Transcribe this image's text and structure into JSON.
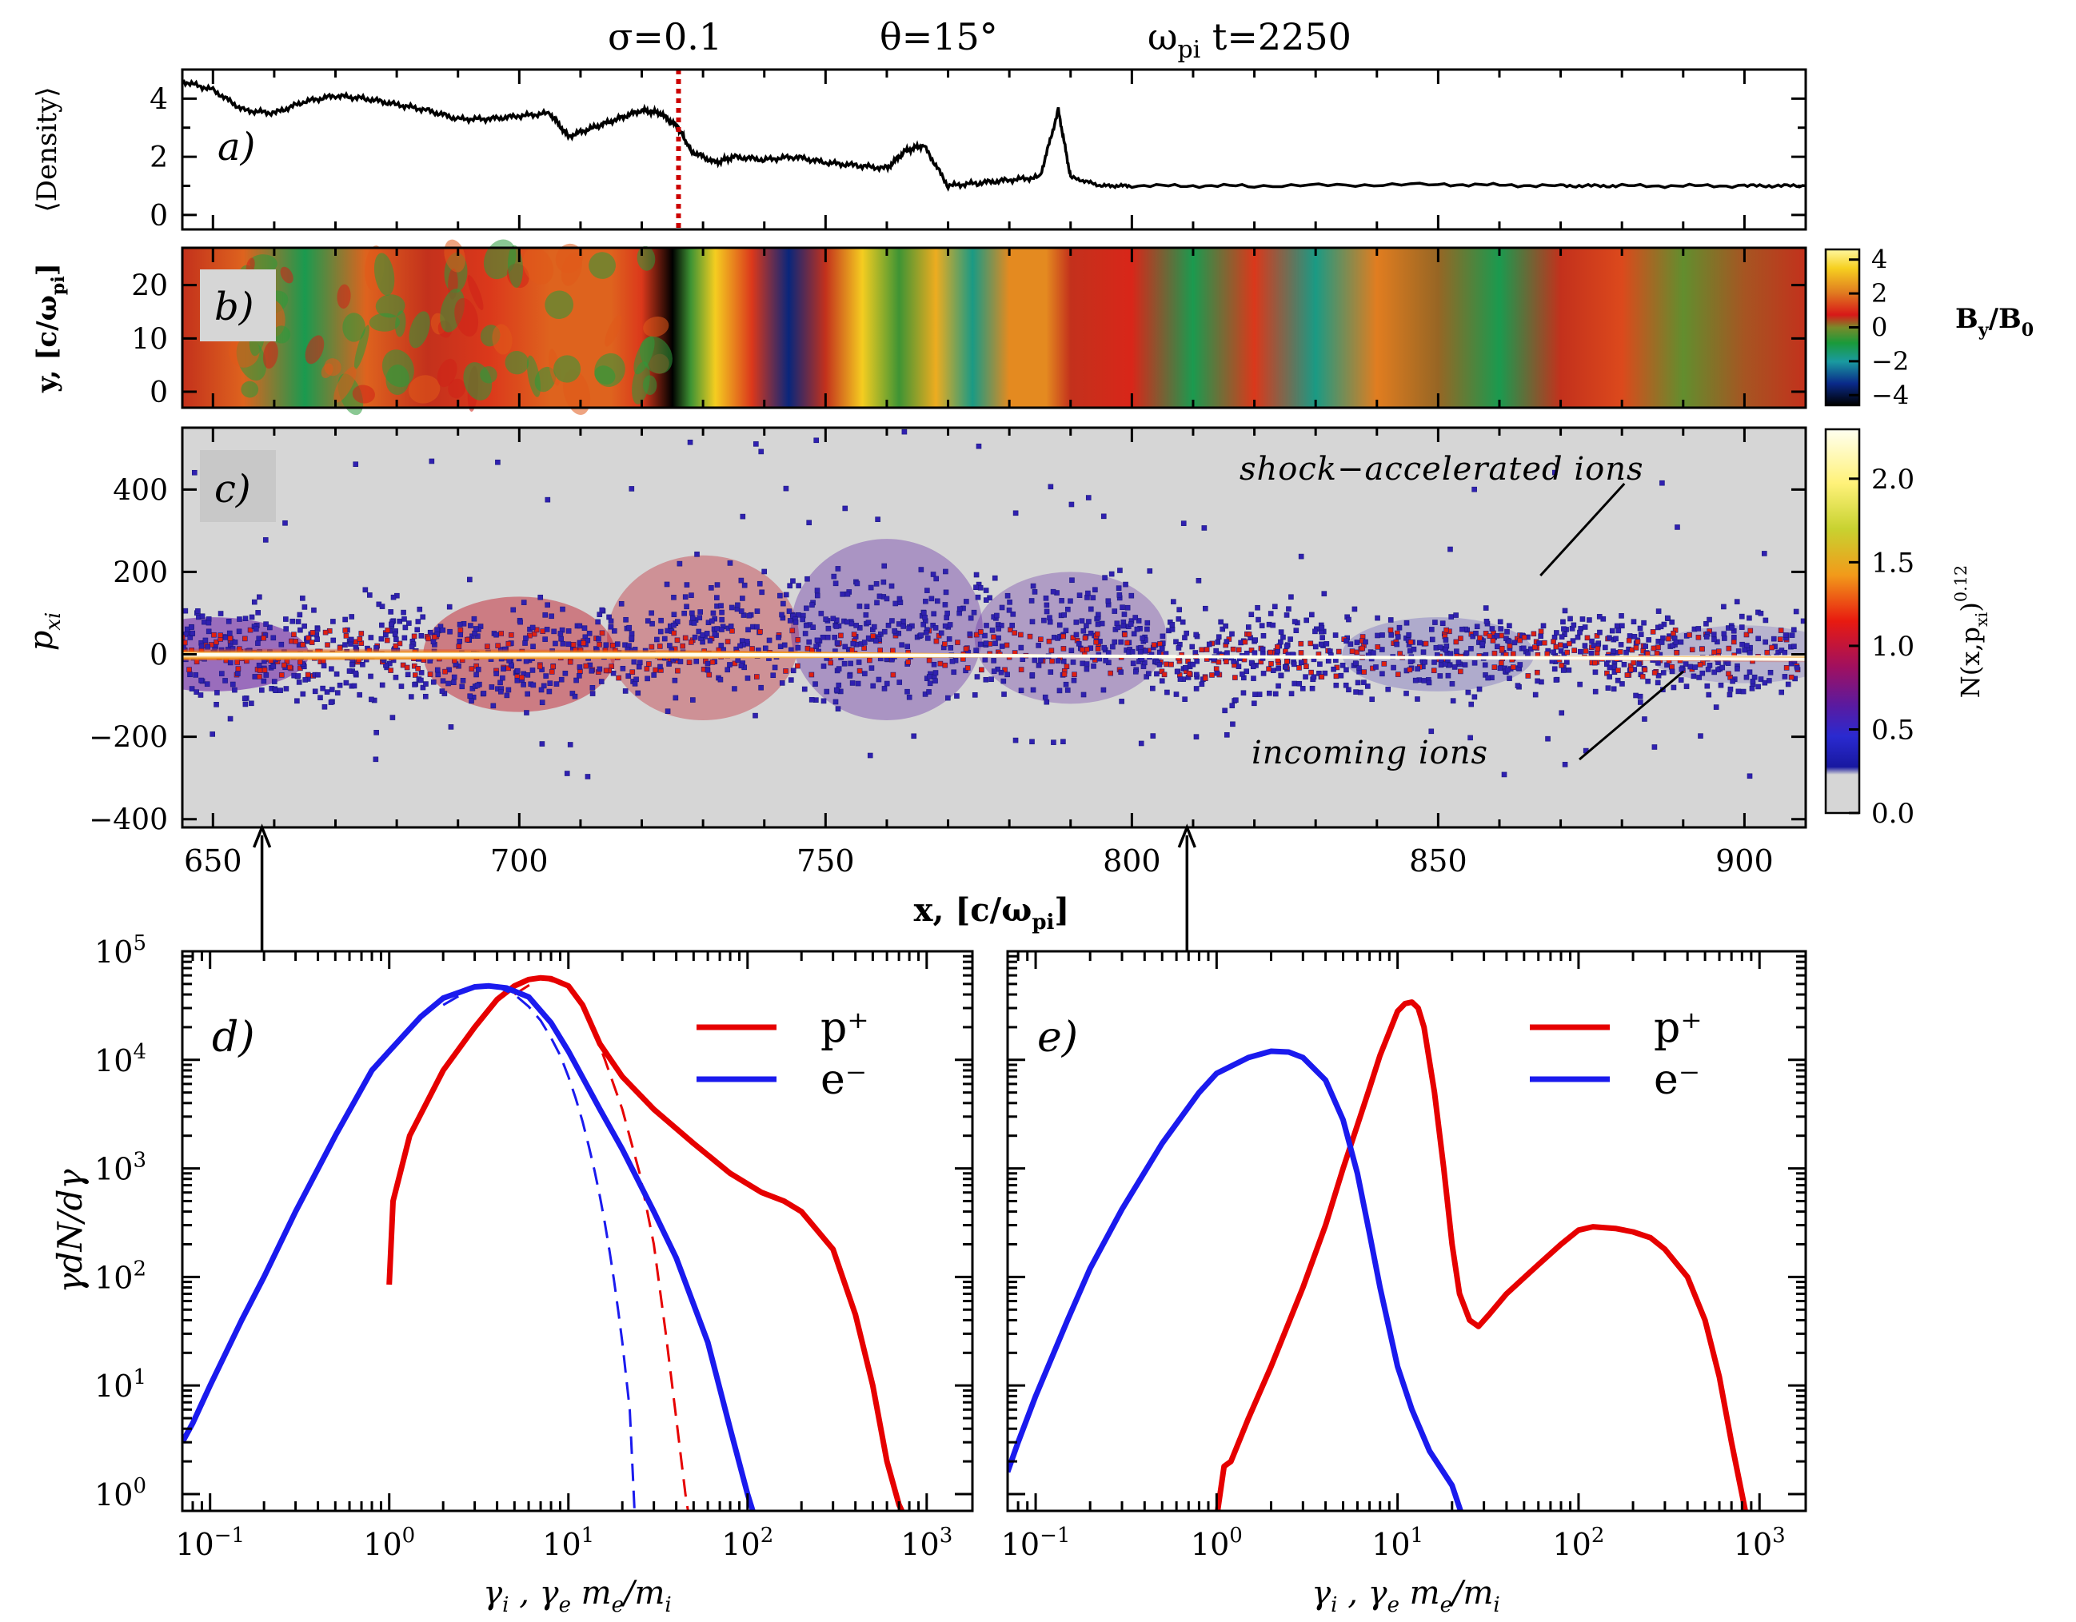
{
  "header": {
    "sigma": "σ=0.1",
    "theta": "θ=15°",
    "time": "ω_pi t=2250"
  },
  "colors": {
    "black": "#000000",
    "red": "#e60000",
    "blue": "#1a1aee",
    "dotted": "#cc0000",
    "panel_bg": "#d6d6d6"
  },
  "chart_data": [
    {
      "id": "a",
      "type": "line",
      "label": "a)",
      "ylabel": "⟨Density⟩",
      "xlim": [
        645,
        910
      ],
      "ylim": [
        -0.5,
        5
      ],
      "yticks": [
        0,
        2,
        4
      ],
      "shock_x": 726,
      "x": [
        645,
        650,
        655,
        660,
        665,
        670,
        675,
        680,
        685,
        690,
        695,
        700,
        705,
        708,
        712,
        716,
        720,
        723,
        726,
        728,
        732,
        735,
        740,
        745,
        750,
        755,
        760,
        763,
        766,
        770,
        775,
        780,
        785,
        788,
        790,
        795,
        800,
        820,
        850,
        870,
        880,
        900,
        910
      ],
      "y": [
        4.6,
        4.3,
        3.6,
        3.5,
        3.9,
        4.1,
        4.0,
        3.8,
        3.6,
        3.3,
        3.3,
        3.4,
        3.5,
        2.7,
        3.0,
        3.3,
        3.6,
        3.5,
        3.0,
        2.2,
        1.8,
        2.0,
        1.9,
        2.0,
        1.8,
        1.7,
        1.6,
        2.2,
        2.4,
        1.0,
        1.1,
        1.2,
        1.3,
        3.6,
        1.3,
        1.0,
        1.0,
        1.0,
        1.05,
        1.0,
        1.0,
        1.0,
        1.0
      ]
    },
    {
      "id": "b",
      "type": "heatmap",
      "label": "b)",
      "ylabel": "y, [c/ω_pi]",
      "xlim": [
        645,
        910
      ],
      "ylim": [
        -3,
        27
      ],
      "yticks": [
        0,
        10,
        20
      ],
      "colorbar": {
        "label": "B_y/B_0",
        "ticks": [
          4,
          2,
          0,
          -2,
          -4
        ]
      },
      "x": [
        645,
        655,
        665,
        675,
        685,
        695,
        705,
        715,
        720,
        725,
        728,
        732,
        738,
        744,
        750,
        756,
        762,
        768,
        774,
        780,
        786,
        790,
        800,
        810,
        820,
        830,
        840,
        850,
        860,
        870,
        880,
        890,
        900,
        910
      ],
      "by": [
        0.5,
        1.5,
        -1.0,
        1.5,
        0.5,
        1.0,
        1.5,
        1.5,
        1.0,
        -4.0,
        -0.5,
        3.0,
        1.0,
        -3.0,
        0.5,
        3.0,
        -0.5,
        2.5,
        -1.5,
        2.0,
        2.0,
        0.5,
        0.8,
        -1.0,
        1.0,
        -1.5,
        1.8,
        0.2,
        -1.0,
        0.5,
        1.2,
        -0.2,
        0.3,
        0.5
      ]
    },
    {
      "id": "c",
      "type": "scatter",
      "label": "c)",
      "ylabel": "p_xi",
      "xlabel": "x, [c/ω_pi]",
      "xlim": [
        645,
        910
      ],
      "ylim": [
        -420,
        550
      ],
      "xticks": [
        650,
        700,
        750,
        800,
        850,
        900
      ],
      "yticks": [
        400,
        200,
        0,
        -200,
        -400
      ],
      "colorbar": {
        "label": "N(x,p_xi)^0.12",
        "ticks": [
          "2.0",
          "1.5",
          "1.0",
          "0.5",
          "0.0"
        ]
      },
      "annotations": [
        {
          "text": "shock−accelerated ions",
          "x": 868,
          "y": 448
        },
        {
          "text": "incoming ions",
          "x": 858,
          "y": -220
        }
      ],
      "arrows_x": [
        658,
        809
      ]
    },
    {
      "id": "d",
      "type": "line",
      "label": "d)",
      "xscale": "log",
      "yscale": "log",
      "xlim": [
        0.07,
        1800
      ],
      "ylim": [
        0.7,
        100000
      ],
      "ylabel": "γdN/dγ",
      "xlabel": "γ_i , γ_e m_e/m_i",
      "legend": [
        "p⁺",
        "e⁻"
      ],
      "series": [
        {
          "name": "p+",
          "color": "red",
          "x": [
            1.0,
            1.05,
            1.3,
            2,
            3,
            4,
            5,
            6,
            7,
            8,
            10,
            12,
            15,
            20,
            30,
            50,
            80,
            120,
            160,
            200,
            300,
            400,
            500,
            600,
            700,
            800
          ],
          "y": [
            85,
            500,
            2000,
            8000,
            20000,
            36000,
            48000,
            55000,
            57000,
            56000,
            48000,
            32000,
            14000,
            7000,
            3500,
            1700,
            900,
            600,
            500,
            400,
            180,
            45,
            10,
            2,
            0.8,
            0.5
          ]
        },
        {
          "name": "p+ fit",
          "color": "red",
          "dashed": true,
          "x": [
            5,
            7,
            10,
            13,
            16,
            20,
            25,
            30,
            35,
            40,
            45,
            48
          ],
          "y": [
            40000,
            57000,
            48000,
            25000,
            10000,
            3500,
            900,
            200,
            30,
            5,
            1,
            0.5
          ]
        },
        {
          "name": "e-",
          "color": "blue",
          "x": [
            0.07,
            0.08,
            0.1,
            0.15,
            0.2,
            0.3,
            0.5,
            0.8,
            1,
            1.5,
            2,
            3,
            3.6,
            4.5,
            6,
            8,
            10,
            15,
            20,
            30,
            40,
            60,
            80,
            100,
            110
          ],
          "y": [
            3,
            4.5,
            10,
            40,
            100,
            400,
            2000,
            8000,
            12000,
            25000,
            37000,
            47000,
            48000,
            46000,
            38000,
            22000,
            12000,
            3500,
            1500,
            400,
            150,
            25,
            4,
            1,
            0.6
          ]
        },
        {
          "name": "e- fit",
          "color": "blue",
          "dashed": true,
          "x": [
            2,
            3,
            4,
            5,
            6,
            7,
            8,
            9,
            10,
            11,
            12,
            13,
            14,
            15,
            16,
            17,
            18,
            19,
            20,
            22,
            23.5
          ],
          "y": [
            32000,
            47000,
            47000,
            40000,
            31000,
            23000,
            16000,
            11000,
            7000,
            4400,
            2700,
            1600,
            950,
            550,
            310,
            170,
            92,
            48,
            25,
            6,
            0.6
          ]
        }
      ]
    },
    {
      "id": "e",
      "type": "line",
      "label": "e)",
      "xscale": "log",
      "yscale": "log",
      "xlim": [
        0.07,
        1800
      ],
      "ylim": [
        0.7,
        100000
      ],
      "xlabel": "γ_i , γ_e m_e/m_i",
      "legend": [
        "p⁺",
        "e⁻"
      ],
      "series": [
        {
          "name": "p+",
          "color": "red",
          "x": [
            1.0,
            1.1,
            1.2,
            1.5,
            2,
            3,
            4,
            5,
            6,
            7,
            8,
            9,
            10,
            11,
            12,
            13,
            14,
            16,
            18,
            20,
            22,
            25,
            28,
            32,
            40,
            60,
            80,
            100,
            120,
            160,
            200,
            250,
            300,
            400,
            500,
            600,
            700,
            800,
            850
          ],
          "y": [
            0.6,
            1.8,
            2,
            5,
            15,
            80,
            300,
            1000,
            2500,
            5500,
            11000,
            18000,
            28000,
            33000,
            34000,
            30000,
            20000,
            5000,
            1000,
            200,
            70,
            40,
            35,
            45,
            70,
            130,
            200,
            270,
            290,
            280,
            260,
            230,
            180,
            100,
            40,
            12,
            3,
            1,
            0.6
          ]
        },
        {
          "name": "e-",
          "color": "blue",
          "x": [
            0.07,
            0.08,
            0.1,
            0.15,
            0.2,
            0.3,
            0.5,
            0.8,
            1,
            1.5,
            2,
            2.5,
            3,
            4,
            5,
            6,
            7,
            8,
            10,
            12,
            15,
            20,
            23
          ],
          "y": [
            1.6,
            3,
            8,
            40,
            120,
            420,
            1700,
            5000,
            7500,
            10500,
            12000,
            11800,
            10500,
            6500,
            2800,
            900,
            250,
            80,
            15,
            6,
            2.5,
            1.2,
            0.6
          ]
        }
      ]
    }
  ]
}
